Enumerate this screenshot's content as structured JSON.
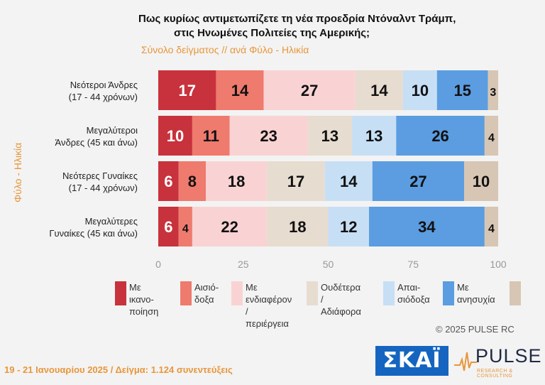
{
  "title_line1": "Πως κυρίως αντιμετωπίζετε τη νέα προεδρία Ντόναλντ Τράμπ,",
  "title_line2": "στις Ηνωμένες Πολιτείες της Αμερικής;",
  "subtitle": "Σύνολο δείγματος // ανά Φύλο - Ηλικία",
  "side_label": "Φύλο - Ηλικία",
  "copyright": "©  2025  PULSE RC",
  "footer": "19 - 21 Ιανουαρίου 2025  /  Δείγμα:  1.124 συνεντεύξεις",
  "logos": {
    "skai": "ΣΚΑΪ",
    "pulse": "PULSE",
    "pulse_sub": "RESEARCH & CONSULTING"
  },
  "chart_data": {
    "type": "bar",
    "orientation": "horizontal",
    "stacked": true,
    "categories": [
      [
        "Νεότεροι Άνδρες",
        "(17 - 44 χρόνων)"
      ],
      [
        "Μεγαλύτεροι",
        "Άνδρες (45 και άνω)"
      ],
      [
        "Νεότερες Γυναίκες",
        "(17 - 44 χρόνων)"
      ],
      [
        "Μεγαλύτερες",
        "Γυναίκες (45 και άνω)"
      ]
    ],
    "series": [
      {
        "name": "Με ικανο-\nποίηση",
        "color": "#c8323c",
        "values": [
          17,
          10,
          6,
          6
        ]
      },
      {
        "name": "Αισιό-\nδοξα",
        "color": "#ef7a6e",
        "values": [
          14,
          11,
          8,
          4
        ]
      },
      {
        "name": "Με ενδιαφέρον\n/ περιέργεια",
        "color": "#f9d3d3",
        "values": [
          27,
          23,
          18,
          22
        ]
      },
      {
        "name": "Ουδέτερα\n/ Αδιάφορα",
        "color": "#e7dcd0",
        "values": [
          14,
          13,
          17,
          18
        ]
      },
      {
        "name": "Απαι-\nσιόδοξα",
        "color": "#c7dff5",
        "values": [
          10,
          13,
          14,
          12
        ]
      },
      {
        "name": "Με\nανησυχία",
        "color": "#5b9de0",
        "values": [
          15,
          26,
          27,
          34
        ]
      },
      {
        "name": "",
        "color": "#d7c6b4",
        "values": [
          3,
          4,
          10,
          4
        ]
      }
    ],
    "xlim": [
      0,
      100
    ],
    "xticks": [
      0,
      25,
      50,
      75,
      100
    ],
    "grid": false,
    "legend": "bottom"
  }
}
